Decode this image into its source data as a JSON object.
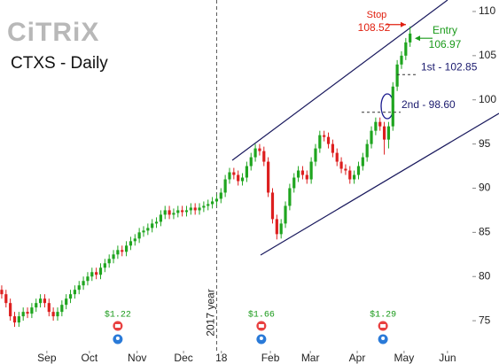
{
  "chart_data": {
    "type": "candlestick",
    "title": "CTXS - Daily",
    "logo": "CiTRiX",
    "up_color": "#1fa51f",
    "down_color": "#dd1f1f",
    "open": [
      78.5,
      78,
      77,
      75.5,
      74.8,
      75.5,
      76,
      75.8,
      76.5,
      77,
      77.5,
      77,
      76,
      75.5,
      76,
      76.8,
      77.5,
      78,
      78.5,
      79,
      79.5,
      80,
      80.5,
      80.2,
      81,
      81.5,
      82,
      82.5,
      83,
      82.8,
      83.5,
      84,
      84.3,
      85,
      85.2,
      85.5,
      86,
      86.2,
      87,
      87.5,
      87,
      87.2,
      87.5,
      87.3,
      87.5,
      87.8,
      87.5,
      87.8,
      88,
      88.2,
      88.5,
      88.8,
      89.5,
      91,
      91.8,
      91.5,
      90.8,
      91.2,
      92.5,
      93.5,
      94.5,
      94.2,
      93,
      89.5,
      86.5,
      84.8,
      86,
      88,
      90,
      91.2,
      92,
      91.5,
      91,
      93,
      94.5,
      96,
      95.8,
      95,
      94,
      93,
      92.2,
      92,
      91,
      91.5,
      92.5,
      93.5,
      95,
      96.5,
      97.5,
      97,
      95.5,
      97,
      101.5,
      104,
      105,
      106.5
    ],
    "high": [
      79,
      78.5,
      77.5,
      76,
      76,
      76.5,
      76.5,
      77,
      77.5,
      78,
      78,
      77.5,
      76.5,
      76.5,
      77.3,
      78,
      78.5,
      79,
      79.5,
      80,
      80.5,
      81,
      81,
      81.5,
      82,
      82.5,
      83,
      83.5,
      83.5,
      84,
      84.5,
      84.8,
      85.5,
      85.7,
      86,
      86.5,
      86.7,
      87.5,
      88,
      88,
      87.7,
      88,
      88,
      88,
      88.3,
      88.3,
      88.3,
      88.5,
      88.7,
      89,
      89.3,
      90,
      91.5,
      92.3,
      92.3,
      92,
      91.7,
      93,
      94,
      95,
      95,
      94.7,
      93.5,
      90,
      87,
      86.5,
      88.5,
      90.5,
      91.7,
      92.5,
      92.5,
      92,
      93.5,
      95,
      96.5,
      96.5,
      96.3,
      95.5,
      94.5,
      93.5,
      92.7,
      92.5,
      92,
      93,
      94,
      95.5,
      97,
      98,
      98,
      97.5,
      97.5,
      102,
      104.5,
      105.5,
      107,
      108.3
    ],
    "low": [
      77.5,
      76.5,
      75,
      74.3,
      74.3,
      75,
      75.3,
      75.3,
      76,
      76.5,
      76.5,
      75.5,
      75,
      75,
      75.5,
      76.3,
      77,
      77.5,
      78,
      78.5,
      79,
      79.5,
      79.7,
      79.7,
      80.5,
      81,
      81.5,
      82,
      82.3,
      82.3,
      83,
      83.5,
      83.8,
      84.5,
      84.7,
      85,
      85.5,
      85.7,
      86.5,
      86.5,
      86.5,
      86.7,
      86.8,
      86.8,
      87,
      87,
      87,
      87.3,
      87.5,
      87.7,
      88,
      88.3,
      89,
      90.5,
      91,
      90.3,
      90.3,
      90.7,
      92,
      93,
      93.7,
      92.5,
      89,
      86,
      84.2,
      84.3,
      85.5,
      87.5,
      89.5,
      90.7,
      91,
      90.5,
      90.5,
      92.5,
      94,
      95.3,
      94.5,
      93.5,
      92.5,
      91.7,
      91.5,
      90.5,
      90.5,
      91,
      92,
      93,
      94.5,
      96,
      96.5,
      93.8,
      94.5,
      96.5,
      101,
      103.5,
      104.5,
      106
    ],
    "close": [
      78,
      77,
      75.5,
      74.8,
      75.5,
      76,
      75.8,
      76.5,
      77,
      77.5,
      77,
      76,
      75.5,
      76,
      76.8,
      77.5,
      78,
      78.5,
      79,
      79.5,
      80,
      80.5,
      80.2,
      81,
      81.5,
      82,
      82.5,
      83,
      82.8,
      83.5,
      84,
      84.3,
      85,
      85.2,
      85.5,
      86,
      86.2,
      87,
      87.5,
      87,
      87.2,
      87.5,
      87.3,
      87.5,
      87.8,
      87.5,
      87.8,
      88,
      88.2,
      88.5,
      88.8,
      89.5,
      91,
      91.8,
      91.5,
      90.8,
      91.2,
      92.5,
      93.5,
      94.5,
      94.2,
      93,
      89.5,
      86.5,
      84.8,
      86,
      88,
      90,
      91.2,
      92,
      91.5,
      91,
      93,
      94.5,
      96,
      95.8,
      95,
      94,
      93,
      92.2,
      92,
      91,
      91.5,
      92.5,
      93.5,
      95,
      96.5,
      97.5,
      97,
      95.5,
      97,
      101.5,
      104,
      105,
      106.5,
      107.5
    ],
    "xlim": [
      -0.4,
      109.5
    ],
    "xticks": [
      {
        "value": 10.5,
        "label": "Sep"
      },
      {
        "value": 20.4,
        "label": "Oct"
      },
      {
        "value": 31.5,
        "label": "Nov"
      },
      {
        "value": 42.3,
        "label": "Dec"
      },
      {
        "value": 51.1,
        "label": "18"
      },
      {
        "value": 62.5,
        "label": "Feb"
      },
      {
        "value": 71.8,
        "label": "Mar"
      },
      {
        "value": 82.7,
        "label": "Apr"
      },
      {
        "value": 93.6,
        "label": "May"
      },
      {
        "value": 103.7,
        "label": "Jun"
      }
    ],
    "ylim": [
      70.1,
      111.3
    ],
    "yticks": [
      75,
      80,
      85,
      90,
      95,
      100,
      105,
      110
    ],
    "year_marker": {
      "x": 50,
      "label": "2017 year"
    },
    "stop": {
      "label": "Stop",
      "value": 108.52
    },
    "entry": {
      "label": "Entry",
      "value": 106.97
    },
    "targets": [
      {
        "label": "1st - 102.85",
        "value": 102.85
      },
      {
        "label": "2nd - 98.60",
        "value": 98.6
      }
    ],
    "dividends": [
      {
        "x": 27,
        "label": "$1.22"
      },
      {
        "x": 60.4,
        "label": "$1.66"
      },
      {
        "x": 88.7,
        "label": "$1.29"
      }
    ]
  }
}
